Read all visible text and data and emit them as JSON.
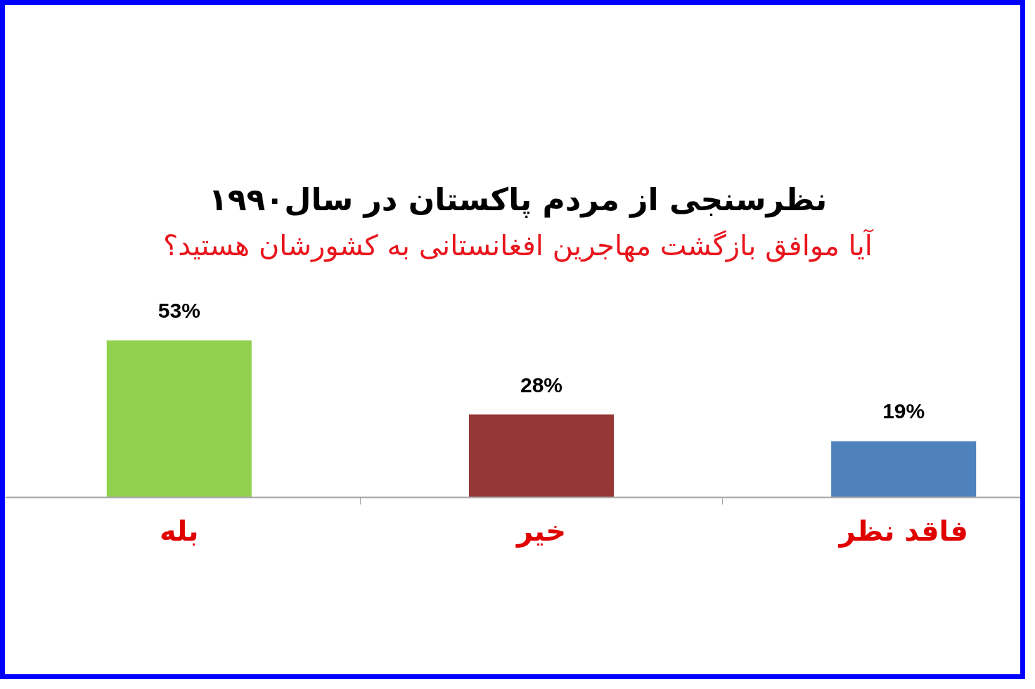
{
  "chart_data": {
    "type": "bar",
    "title": "نظرسنجی از مردم پاکستان در سال۱۹۹۰",
    "subtitle": "آیا موافق بازگشت مهاجرین افغانستانی به کشورشان هستید؟",
    "categories": [
      "بله",
      "خیر",
      "فاقد نظر"
    ],
    "values": [
      53,
      28,
      19
    ],
    "colors": [
      "#92d050",
      "#953735",
      "#4f81bd"
    ],
    "value_labels": [
      "53%",
      "28%",
      "19%"
    ]
  }
}
